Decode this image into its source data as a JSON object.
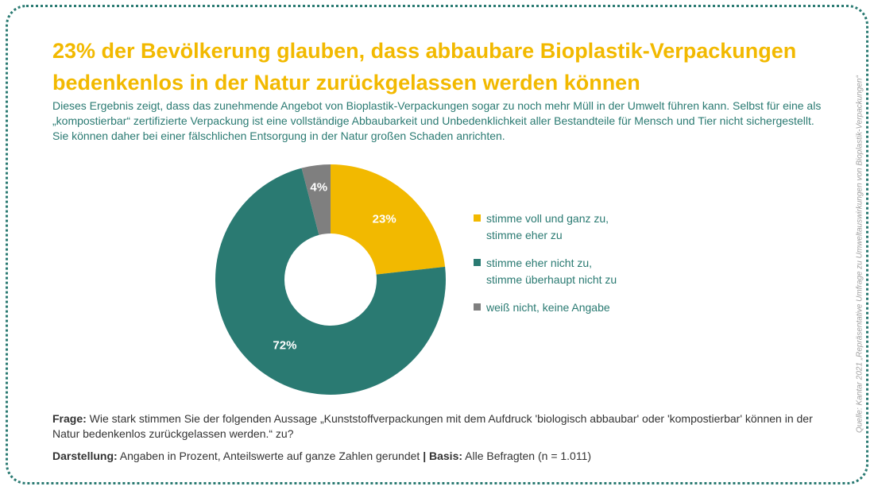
{
  "title": "23% der Bevölkerung glauben, dass abbaubare Bioplastik-Verpackungen bedenkenlos in der Natur zurückgelassen werden können",
  "subtitle": "Dieses Ergebnis zeigt, dass das zunehmende Angebot von Bioplastik-Verpackungen sogar zu noch mehr Müll in der Umwelt führen kann. Selbst für eine als „kompostierbar“ zertifizierte Verpackung ist eine vollständige Abbaubarkeit und Unbedenklichkeit aller Bestandteile für Mensch und Tier nicht sichergestellt. Sie können daher bei einer fälschlichen Entsorgung in der Natur großen Schaden anrichten.",
  "chart_data": {
    "type": "pie",
    "donut": true,
    "slices": [
      {
        "label": "stimme voll und ganz zu,\nstimme eher zu",
        "value": 23,
        "value_label": "23%",
        "color": "#f2b900"
      },
      {
        "label": "stimme eher nicht zu,\nstimme überhaupt nicht zu",
        "value": 72,
        "value_label": "72%",
        "color": "#2a7a72"
      },
      {
        "label": "weiß nicht, keine Angabe",
        "value": 4,
        "value_label": "4%",
        "color": "#7f7f7f"
      }
    ],
    "legend_position": "right"
  },
  "footer": {
    "frage_label": "Frage:",
    "frage_text": " Wie stark stimmen Sie der folgenden Aussage „Kunststoffverpackungen mit dem Aufdruck 'biologisch abbaubar' oder 'kompostierbar' können in der Natur bedenkenlos zurückgelassen werden.“ zu?",
    "darstellung_label": "Darstellung:",
    "darstellung_text": " Angaben in Prozent, Anteilswerte auf ganze Zahlen gerundet ",
    "separator": "|",
    "basis_label": "Basis:",
    "basis_text": " Alle Befragten (n = 1.011)"
  },
  "source": "Quelle: Kantar 2021 „Repräsentative Umfrage zu Umweltauswirkungen von Bioplastik-Verpackungen“"
}
